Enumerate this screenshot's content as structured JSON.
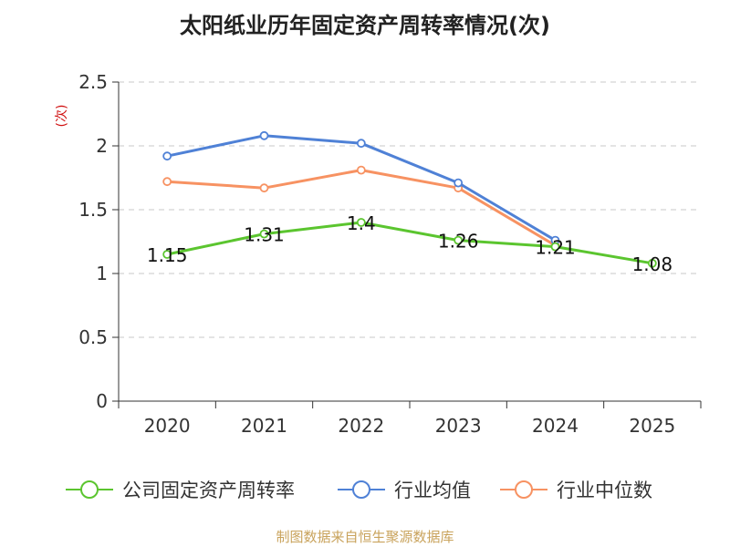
{
  "chart_data": {
    "type": "line",
    "title": "太阳纸业历年固定资产周转率情况(次)",
    "ylabel": "(次)",
    "categories": [
      "2020",
      "2021",
      "2022",
      "2023",
      "2024",
      "2025"
    ],
    "ylim": [
      0,
      2.5
    ],
    "yticks": [
      "0",
      "0.5",
      "1",
      "1.5",
      "2",
      "2.5"
    ],
    "grid": true,
    "legend_position": "bottom",
    "series": [
      {
        "name": "公司固定资产周转率",
        "color": "#5bc52f",
        "values": [
          1.15,
          1.31,
          1.4,
          1.26,
          1.21,
          1.08
        ],
        "labels": [
          "1.15",
          "1.31",
          "1.4",
          "1.26",
          "1.21",
          "1.08"
        ]
      },
      {
        "name": "行业均值",
        "color": "#4f81d6",
        "values": [
          1.92,
          2.08,
          2.02,
          1.71,
          1.26,
          null
        ]
      },
      {
        "name": "行业中位数",
        "color": "#f79262",
        "values": [
          1.72,
          1.67,
          1.81,
          1.67,
          1.22,
          null
        ]
      }
    ]
  },
  "source": "制图数据来自恒生聚源数据库"
}
